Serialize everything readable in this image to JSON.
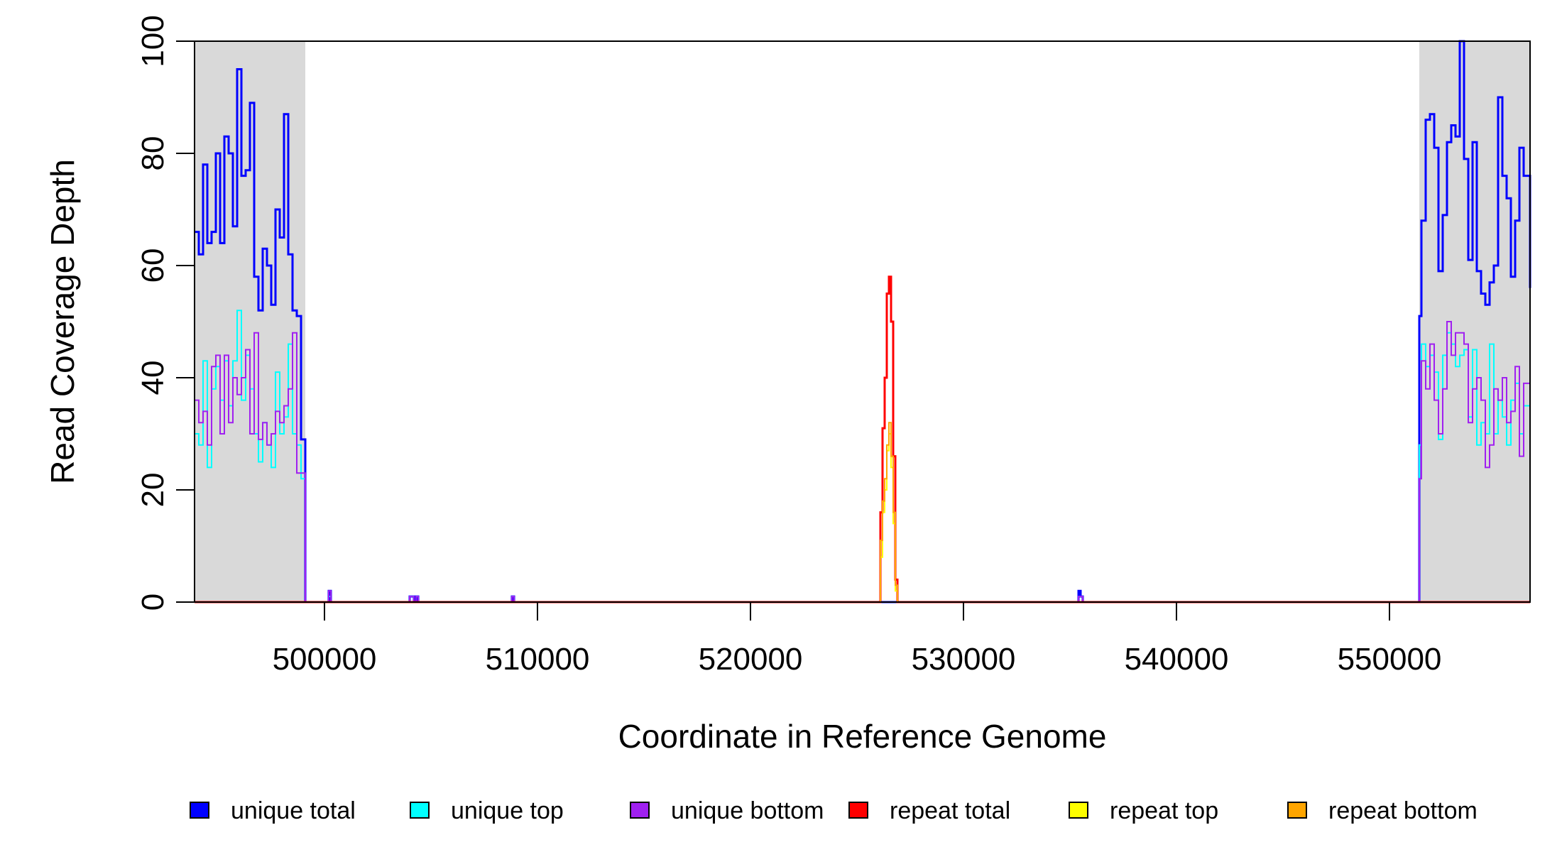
{
  "chart_data": {
    "type": "line",
    "title": "",
    "xlabel": "Coordinate in Reference Genome",
    "ylabel": "Read Coverage Depth",
    "xlim": [
      493900,
      556600
    ],
    "ylim": [
      0,
      100
    ],
    "xticks": [
      500000,
      510000,
      520000,
      530000,
      540000,
      550000
    ],
    "xtick_labels": [
      "500000",
      "510000",
      "520000",
      "530000",
      "540000",
      "550000"
    ],
    "yticks": [
      0,
      20,
      40,
      60,
      80,
      100
    ],
    "ytick_labels": [
      "0",
      "20",
      "40",
      "60",
      "80",
      "100"
    ],
    "grid": false,
    "legend_position": "bottom",
    "shaded_regions": [
      {
        "x0": 493900,
        "x1": 499100,
        "color": "#d9d9d9"
      },
      {
        "x0": 551400,
        "x1": 556600,
        "color": "#d9d9d9"
      }
    ],
    "series": [
      {
        "name": "unique total",
        "color": "#0000ff",
        "width": 3,
        "x": [
          493900,
          494100,
          494300,
          494500,
          494700,
          494900,
          495100,
          495300,
          495500,
          495700,
          495900,
          496100,
          496300,
          496500,
          496700,
          496900,
          497100,
          497300,
          497500,
          497700,
          497900,
          498100,
          498300,
          498500,
          498700,
          498900,
          499100,
          499200,
          500100,
          500200,
          500300,
          500400,
          503900,
          504000,
          504100,
          504200,
          504300,
          504400,
          508700,
          508800,
          508900,
          509000,
          535300,
          535400,
          535500,
          535600,
          535700,
          551300,
          551400,
          551500,
          551700,
          551900,
          552100,
          552300,
          552500,
          552700,
          552900,
          553100,
          553300,
          553500,
          553700,
          553900,
          554100,
          554300,
          554500,
          554700,
          554900,
          555100,
          555300,
          555500,
          555700,
          555900,
          556100,
          556300,
          556600
        ],
        "y": [
          66,
          62,
          78,
          64,
          66,
          80,
          64,
          83,
          80,
          67,
          95,
          76,
          77,
          89,
          58,
          52,
          63,
          60,
          53,
          70,
          65,
          87,
          62,
          52,
          51,
          29,
          0,
          0,
          0,
          2,
          0,
          0,
          0,
          1,
          1,
          0,
          1,
          0,
          0,
          1,
          0,
          0,
          0,
          2,
          1,
          0,
          0,
          0,
          51,
          68,
          86,
          87,
          81,
          59,
          69,
          82,
          85,
          83,
          100,
          79,
          61,
          82,
          59,
          55,
          53,
          57,
          60,
          90,
          76,
          72,
          58,
          68,
          81,
          76,
          56
        ]
      },
      {
        "name": "unique top",
        "color": "#00ffff",
        "width": 2,
        "x": [
          493900,
          494100,
          494300,
          494500,
          494700,
          494900,
          495100,
          495300,
          495500,
          495700,
          495900,
          496100,
          496300,
          496500,
          496700,
          496900,
          497100,
          497300,
          497500,
          497700,
          497900,
          498100,
          498300,
          498500,
          498700,
          498900,
          499100,
          499200,
          500100,
          500200,
          500300,
          500400,
          503900,
          504000,
          504100,
          504200,
          504300,
          504400,
          508700,
          508800,
          508900,
          509000,
          535300,
          535400,
          535500,
          535600,
          535700,
          551300,
          551400,
          551500,
          551700,
          551900,
          552100,
          552300,
          552500,
          552700,
          552900,
          553100,
          553300,
          553500,
          553700,
          553900,
          554100,
          554300,
          554500,
          554700,
          554900,
          555100,
          555300,
          555500,
          555700,
          555900,
          556100,
          556300,
          556600
        ],
        "y": [
          30,
          28,
          43,
          24,
          38,
          42,
          36,
          43,
          35,
          43,
          52,
          36,
          44,
          38,
          30,
          25,
          32,
          28,
          24,
          41,
          30,
          33,
          46,
          30,
          28,
          22,
          0,
          0,
          0,
          1,
          0,
          0,
          0,
          1,
          1,
          0,
          1,
          0,
          0,
          1,
          0,
          0,
          0,
          1,
          1,
          0,
          0,
          0,
          28,
          46,
          42,
          44,
          41,
          29,
          44,
          48,
          46,
          42,
          44,
          45,
          33,
          45,
          28,
          32,
          30,
          46,
          30,
          36,
          33,
          28,
          36,
          39,
          30,
          35,
          28
        ]
      },
      {
        "name": "unique bottom",
        "color": "#a020f0",
        "width": 2,
        "x": [
          493900,
          494100,
          494300,
          494500,
          494700,
          494900,
          495100,
          495300,
          495500,
          495700,
          495900,
          496100,
          496300,
          496500,
          496700,
          496900,
          497100,
          497300,
          497500,
          497700,
          497900,
          498100,
          498300,
          498500,
          498700,
          498900,
          499100,
          499200,
          500100,
          500200,
          500300,
          500400,
          503900,
          504000,
          504100,
          504200,
          504300,
          504400,
          508700,
          508800,
          508900,
          509000,
          535300,
          535400,
          535500,
          535600,
          535700,
          551300,
          551400,
          551500,
          551700,
          551900,
          552100,
          552300,
          552500,
          552700,
          552900,
          553100,
          553300,
          553500,
          553700,
          553900,
          554100,
          554300,
          554500,
          554700,
          554900,
          555100,
          555300,
          555500,
          555700,
          555900,
          556100,
          556300,
          556600
        ],
        "y": [
          36,
          32,
          34,
          28,
          42,
          44,
          30,
          44,
          32,
          40,
          37,
          40,
          45,
          30,
          48,
          29,
          32,
          28,
          30,
          34,
          32,
          35,
          38,
          48,
          23,
          23,
          0,
          0,
          0,
          2,
          0,
          0,
          0,
          1,
          1,
          0,
          1,
          0,
          0,
          1,
          0,
          0,
          0,
          1,
          1,
          0,
          0,
          0,
          22,
          43,
          38,
          46,
          36,
          30,
          38,
          50,
          44,
          48,
          48,
          46,
          32,
          38,
          40,
          36,
          24,
          28,
          38,
          36,
          40,
          32,
          34,
          42,
          26,
          39,
          30
        ]
      },
      {
        "name": "repeat total",
        "color": "#ff0000",
        "width": 3,
        "x": [
          493900,
          526000,
          526100,
          526200,
          526300,
          526400,
          526500,
          526600,
          526700,
          526800,
          526900,
          556600
        ],
        "y": [
          0,
          0,
          16,
          31,
          40,
          55,
          58,
          50,
          26,
          4,
          0,
          0
        ]
      },
      {
        "name": "repeat top",
        "color": "#ffff00",
        "width": 2,
        "x": [
          493900,
          526000,
          526100,
          526200,
          526300,
          526400,
          526500,
          526600,
          526700,
          526800,
          526900,
          556600
        ],
        "y": [
          0,
          0,
          8,
          16,
          20,
          27,
          30,
          24,
          14,
          2,
          0,
          0
        ]
      },
      {
        "name": "repeat bottom",
        "color": "#ffa500",
        "width": 2,
        "x": [
          493900,
          526000,
          526100,
          526200,
          526300,
          526400,
          526500,
          526600,
          526700,
          526800,
          526900,
          556600
        ],
        "y": [
          0,
          0,
          11,
          18,
          22,
          28,
          32,
          26,
          16,
          3,
          0,
          0
        ]
      }
    ],
    "legend_items": [
      {
        "label": "unique total",
        "color": "#0000ff"
      },
      {
        "label": "unique top",
        "color": "#00ffff"
      },
      {
        "label": "unique bottom",
        "color": "#a020f0"
      },
      {
        "label": "repeat total",
        "color": "#ff0000"
      },
      {
        "label": "repeat top",
        "color": "#ffff00"
      },
      {
        "label": "repeat bottom",
        "color": "#ffa500"
      }
    ]
  }
}
